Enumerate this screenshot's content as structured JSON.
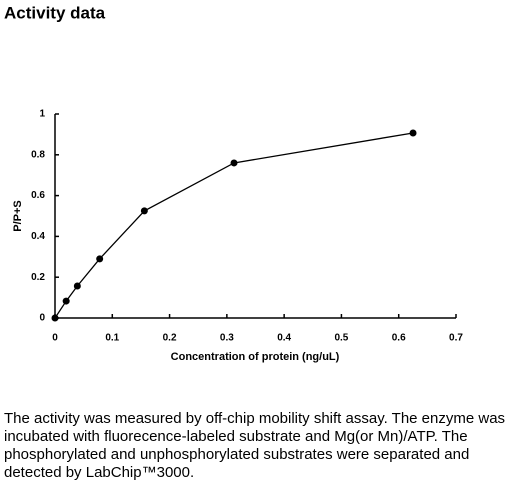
{
  "title": "Activity data",
  "chart_data": {
    "type": "line",
    "x_label": "Concentration of protein (ng/uL)",
    "y_label": "P/P+S",
    "x": [
      0,
      0.0195,
      0.039,
      0.078,
      0.156,
      0.3125,
      0.625
    ],
    "values": [
      0,
      0.083,
      0.157,
      0.29,
      0.525,
      0.76,
      0.907
    ],
    "color": "#000000",
    "xlim": [
      0,
      0.7
    ],
    "xticks": [
      0,
      0.1,
      0.2,
      0.3,
      0.4,
      0.5,
      0.6,
      0.7
    ],
    "ylim": [
      0,
      1
    ],
    "yticks": [
      0,
      0.2,
      0.4,
      0.6,
      0.8,
      1
    ]
  },
  "description": "The activity was measured by off-chip mobility shift assay. The enzyme was incubated with fluorecence-labeled substrate and Mg(or Mn)/ATP. The phosphorylated and unphosphorylated substrates were separated and detected by LabChip™3000."
}
